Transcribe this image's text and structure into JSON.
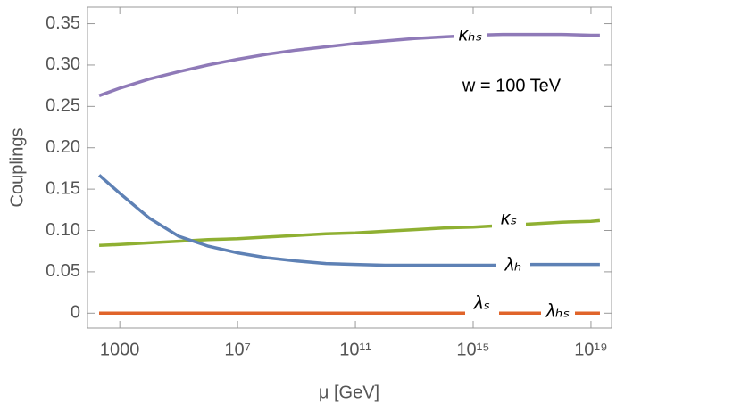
{
  "chart_data": {
    "type": "line",
    "annotation": "w = 100 TeV",
    "xlabel": "μ [GeV]",
    "ylabel": "Couplings",
    "xscale": "log",
    "xlim": [
      80,
      5e+19
    ],
    "xticks": [
      1000,
      {
        "value": 10000000.0,
        "label": "10⁷"
      },
      {
        "value": 100000000000.0,
        "label": "10¹¹"
      },
      {
        "value": 1000000000000000.0,
        "label": "10¹⁵"
      },
      {
        "value": 1e+19,
        "label": "10¹⁹"
      }
    ],
    "ylim": [
      -0.018,
      0.37
    ],
    "yticks": [
      0,
      0.05,
      {
        "value": 0.1,
        "label": "0.10"
      },
      0.15,
      {
        "value": 0.2,
        "label": "0.20"
      },
      0.25,
      {
        "value": 0.3,
        "label": "0.30"
      },
      0.35
    ],
    "x": [
      200,
      1000,
      10000.0,
      100000.0,
      1000000.0,
      10000000.0,
      100000000.0,
      1000000000.0,
      10000000000.0,
      100000000000.0,
      1000000000000.0,
      10000000000000.0,
      100000000000000.0,
      1000000000000000.0,
      1e+16,
      1e+17,
      1e+18,
      1e+19,
      2e+19
    ],
    "series": [
      {
        "name": "κₕₛ",
        "color": "#8f7ab8",
        "values": [
          0.263,
          0.272,
          0.283,
          0.292,
          0.3,
          0.307,
          0.313,
          0.318,
          0.322,
          0.326,
          0.329,
          0.332,
          0.334,
          0.336,
          0.337,
          0.337,
          0.337,
          0.336,
          0.336
        ]
      },
      {
        "name": "κₛ",
        "color": "#8fb032",
        "values": [
          0.082,
          0.083,
          0.085,
          0.087,
          0.089,
          0.09,
          0.092,
          0.094,
          0.096,
          0.097,
          0.099,
          0.101,
          0.103,
          0.104,
          0.106,
          0.108,
          0.11,
          0.111,
          0.112
        ]
      },
      {
        "name": "λₕ",
        "color": "#5e81b5",
        "values": [
          0.167,
          0.145,
          0.115,
          0.093,
          0.081,
          0.073,
          0.067,
          0.063,
          0.06,
          0.059,
          0.058,
          0.058,
          0.058,
          0.058,
          0.058,
          0.059,
          0.059,
          0.059,
          0.059
        ]
      },
      {
        "name": "λₛ",
        "color": "#e0642a",
        "values": [
          0,
          0,
          0,
          0,
          0,
          0,
          0,
          0,
          0,
          0,
          0,
          0,
          0,
          0,
          0,
          0,
          0,
          0,
          0
        ]
      },
      {
        "name": "λₕₛ",
        "color": "#e0642a",
        "values": [
          0,
          0,
          0,
          0,
          0,
          0,
          0,
          0,
          0,
          0,
          0,
          0,
          0,
          0,
          0,
          0,
          0,
          0,
          0
        ]
      }
    ]
  }
}
